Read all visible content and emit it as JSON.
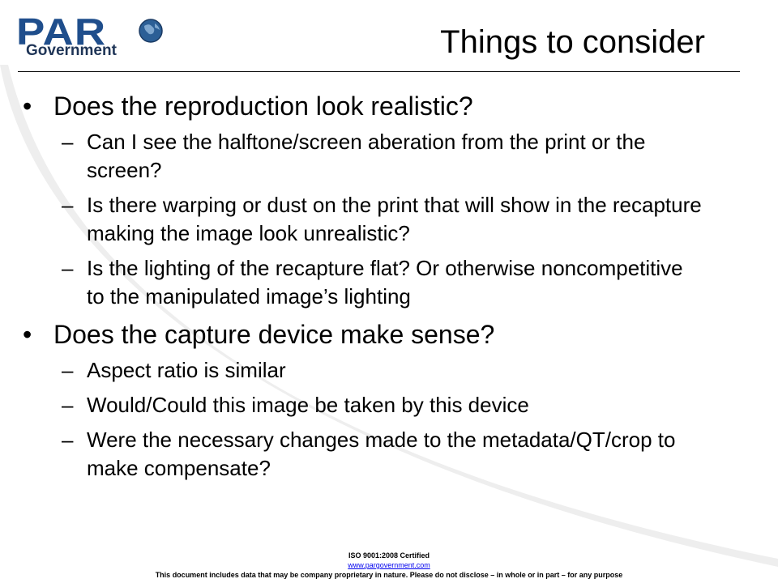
{
  "logo": {
    "wordmark": "PAR",
    "subtitle": "Government",
    "brand_color": "#1f4e8c",
    "icon": "globe-icon"
  },
  "slide": {
    "title": "Things to consider",
    "bullets": [
      {
        "text": "Does the reproduction look realistic?",
        "subs": [
          "Can I see the halftone/screen aberation from the print or the screen?",
          "Is there warping or dust on the print that will show in the recapture making the image look unrealistic?",
          "Is the lighting  of the recapture flat? Or otherwise noncompetitive to the manipulated image’s lighting"
        ]
      },
      {
        "text": "Does the capture device make sense?",
        "subs": [
          "Aspect ratio is similar",
          "Would/Could this image be taken by this device",
          "Were the necessary changes made to the metadata/QT/crop to make compensate?"
        ]
      }
    ]
  },
  "footer": {
    "certification": "ISO 9001:2008 Certified",
    "website": "www.pargovernment.com",
    "disclaimer": "This document includes data that may be company proprietary in nature. Please do not disclose – in whole or in part – for any purpose"
  }
}
